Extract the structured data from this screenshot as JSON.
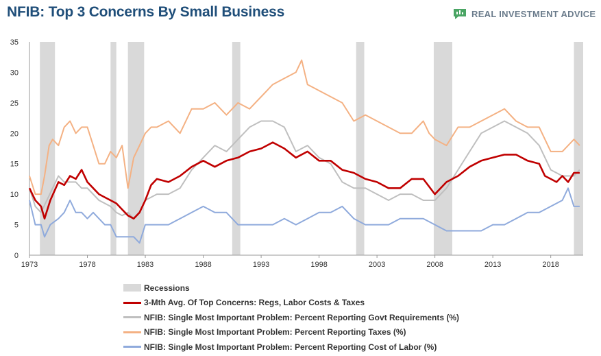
{
  "header": {
    "title": "NFIB: Top 3 Concerns By Small Business",
    "brand": "REAL INVESTMENT ADVICE"
  },
  "legend": {
    "items": [
      {
        "label": "Recessions",
        "kind": "box",
        "color": "#d9d9d9"
      },
      {
        "label": "3-Mth Avg. Of Top Concerns: Regs, Labor Costs & Taxes",
        "kind": "line",
        "color": "#c00000"
      },
      {
        "label": "NFIB: Single Most Important Problem: Percent Reporting Govt Requirements (%)",
        "kind": "line",
        "color": "#bfbfbf"
      },
      {
        "label": "NFIB: Single Most Important Problem: Percent Reporting Taxes (%)",
        "kind": "line",
        "color": "#f4b183"
      },
      {
        "label": "NFIB: Single Most Important Problem: Percent Reporting Cost of Labor (%)",
        "kind": "line",
        "color": "#8faadc"
      }
    ]
  },
  "chart_data": {
    "type": "line",
    "title": "NFIB: Top 3 Concerns By Small Business",
    "xlabel": "",
    "ylabel": "",
    "xlim": [
      1973,
      2020.8
    ],
    "ylim": [
      0,
      35
    ],
    "x_ticks": [
      "1973",
      "1978",
      "1983",
      "1988",
      "1993",
      "1998",
      "2003",
      "2008",
      "2013",
      "2018"
    ],
    "y_ticks": [
      "0",
      "5",
      "10",
      "15",
      "20",
      "25",
      "30",
      "35"
    ],
    "grid": false,
    "legend_position": "bottom",
    "recessions": [
      [
        1973.9,
        1975.2
      ],
      [
        1980.0,
        1980.5
      ],
      [
        1981.5,
        1982.9
      ],
      [
        1990.5,
        1991.2
      ],
      [
        2001.2,
        2001.9
      ],
      [
        2007.9,
        2009.5
      ],
      [
        2020.0,
        2020.8
      ]
    ],
    "series": [
      {
        "name": "3-Mth Avg. Of Top Concerns: Regs, Labor Costs & Taxes",
        "color": "#c00000",
        "points": [
          [
            1973.0,
            11
          ],
          [
            1973.5,
            9
          ],
          [
            1974.0,
            8
          ],
          [
            1974.3,
            6
          ],
          [
            1974.8,
            9
          ],
          [
            1975.5,
            12
          ],
          [
            1976.0,
            11.5
          ],
          [
            1976.5,
            13
          ],
          [
            1977.0,
            12.5
          ],
          [
            1977.5,
            14
          ],
          [
            1978.0,
            12
          ],
          [
            1978.5,
            11
          ],
          [
            1979.0,
            10
          ],
          [
            1979.5,
            9.5
          ],
          [
            1980.0,
            9
          ],
          [
            1980.5,
            8.5
          ],
          [
            1981.0,
            7.5
          ],
          [
            1981.5,
            6.5
          ],
          [
            1982.0,
            6
          ],
          [
            1982.5,
            7
          ],
          [
            1983.0,
            9
          ],
          [
            1983.5,
            11.5
          ],
          [
            1984.0,
            12.5
          ],
          [
            1985.0,
            12
          ],
          [
            1986.0,
            13
          ],
          [
            1987.0,
            14.5
          ],
          [
            1988.0,
            15.5
          ],
          [
            1989.0,
            14.5
          ],
          [
            1990.0,
            15.5
          ],
          [
            1991.0,
            16
          ],
          [
            1992.0,
            17
          ],
          [
            1993.0,
            17.5
          ],
          [
            1994.0,
            18.5
          ],
          [
            1995.0,
            17.5
          ],
          [
            1996.0,
            16
          ],
          [
            1997.0,
            17
          ],
          [
            1998.0,
            15.5
          ],
          [
            1999.0,
            15.5
          ],
          [
            2000.0,
            14
          ],
          [
            2001.0,
            13.5
          ],
          [
            2002.0,
            12.5
          ],
          [
            2003.0,
            12
          ],
          [
            2004.0,
            11
          ],
          [
            2005.0,
            11
          ],
          [
            2006.0,
            12.5
          ],
          [
            2007.0,
            12.5
          ],
          [
            2008.0,
            10
          ],
          [
            2009.0,
            12
          ],
          [
            2010.0,
            13
          ],
          [
            2011.0,
            14.5
          ],
          [
            2012.0,
            15.5
          ],
          [
            2013.0,
            16
          ],
          [
            2014.0,
            16.5
          ],
          [
            2015.0,
            16.5
          ],
          [
            2016.0,
            15.5
          ],
          [
            2017.0,
            15
          ],
          [
            2017.5,
            13
          ],
          [
            2018.0,
            12.5
          ],
          [
            2018.5,
            12
          ],
          [
            2019.0,
            13
          ],
          [
            2019.5,
            12
          ],
          [
            2020.0,
            13.5
          ],
          [
            2020.5,
            13.5
          ]
        ]
      },
      {
        "name": "NFIB: Single Most Important Problem: Percent Reporting Govt Requirements (%)",
        "color": "#bfbfbf",
        "points": [
          [
            1973.0,
            11
          ],
          [
            1973.5,
            8
          ],
          [
            1974.0,
            7
          ],
          [
            1974.5,
            9
          ],
          [
            1975.0,
            11
          ],
          [
            1975.5,
            13
          ],
          [
            1976.0,
            12
          ],
          [
            1977.0,
            12
          ],
          [
            1977.5,
            11
          ],
          [
            1978.0,
            11
          ],
          [
            1979.0,
            9
          ],
          [
            1980.0,
            8
          ],
          [
            1980.5,
            7
          ],
          [
            1981.0,
            6.5
          ],
          [
            1981.5,
            7
          ],
          [
            1982.0,
            6
          ],
          [
            1982.5,
            7
          ],
          [
            1983.0,
            9
          ],
          [
            1984.0,
            10
          ],
          [
            1985.0,
            10
          ],
          [
            1986.0,
            11
          ],
          [
            1987.0,
            14
          ],
          [
            1988.0,
            16
          ],
          [
            1989.0,
            18
          ],
          [
            1990.0,
            17
          ],
          [
            1991.0,
            19
          ],
          [
            1992.0,
            21
          ],
          [
            1993.0,
            22
          ],
          [
            1994.0,
            22
          ],
          [
            1995.0,
            21
          ],
          [
            1996.0,
            17
          ],
          [
            1997.0,
            18
          ],
          [
            1998.0,
            16
          ],
          [
            1999.0,
            15
          ],
          [
            2000.0,
            12
          ],
          [
            2001.0,
            11
          ],
          [
            2002.0,
            11
          ],
          [
            2003.0,
            10
          ],
          [
            2004.0,
            9
          ],
          [
            2005.0,
            10
          ],
          [
            2006.0,
            10
          ],
          [
            2007.0,
            9
          ],
          [
            2008.0,
            9
          ],
          [
            2009.0,
            11
          ],
          [
            2010.0,
            14
          ],
          [
            2011.0,
            17
          ],
          [
            2012.0,
            20
          ],
          [
            2013.0,
            21
          ],
          [
            2014.0,
            22
          ],
          [
            2015.0,
            21
          ],
          [
            2016.0,
            20
          ],
          [
            2017.0,
            18
          ],
          [
            2018.0,
            14
          ],
          [
            2019.0,
            13
          ],
          [
            2020.0,
            13
          ],
          [
            2020.5,
            14
          ]
        ]
      },
      {
        "name": "NFIB: Single Most Important Problem: Percent Reporting Taxes (%)",
        "color": "#f4b183",
        "points": [
          [
            1973.0,
            13
          ],
          [
            1973.5,
            10
          ],
          [
            1974.0,
            10
          ],
          [
            1974.3,
            13
          ],
          [
            1974.7,
            18
          ],
          [
            1975.0,
            19
          ],
          [
            1975.5,
            18
          ],
          [
            1976.0,
            21
          ],
          [
            1976.5,
            22
          ],
          [
            1977.0,
            20
          ],
          [
            1977.5,
            21
          ],
          [
            1978.0,
            21
          ],
          [
            1978.5,
            18
          ],
          [
            1979.0,
            15
          ],
          [
            1979.5,
            15
          ],
          [
            1980.0,
            17
          ],
          [
            1980.5,
            16
          ],
          [
            1981.0,
            18
          ],
          [
            1981.5,
            11
          ],
          [
            1982.0,
            16
          ],
          [
            1982.5,
            18
          ],
          [
            1983.0,
            20
          ],
          [
            1983.5,
            21
          ],
          [
            1984.0,
            21
          ],
          [
            1985.0,
            22
          ],
          [
            1986.0,
            20
          ],
          [
            1987.0,
            24
          ],
          [
            1988.0,
            24
          ],
          [
            1989.0,
            25
          ],
          [
            1990.0,
            23
          ],
          [
            1991.0,
            25
          ],
          [
            1992.0,
            24
          ],
          [
            1993.0,
            26
          ],
          [
            1994.0,
            28
          ],
          [
            1995.0,
            29
          ],
          [
            1996.0,
            30
          ],
          [
            1996.5,
            32
          ],
          [
            1997.0,
            28
          ],
          [
            1998.0,
            27
          ],
          [
            1999.0,
            26
          ],
          [
            2000.0,
            25
          ],
          [
            2001.0,
            22
          ],
          [
            2002.0,
            23
          ],
          [
            2003.0,
            22
          ],
          [
            2004.0,
            21
          ],
          [
            2005.0,
            20
          ],
          [
            2006.0,
            20
          ],
          [
            2007.0,
            22
          ],
          [
            2007.5,
            20
          ],
          [
            2008.0,
            19
          ],
          [
            2009.0,
            18
          ],
          [
            2010.0,
            21
          ],
          [
            2011.0,
            21
          ],
          [
            2012.0,
            22
          ],
          [
            2013.0,
            23
          ],
          [
            2014.0,
            24
          ],
          [
            2015.0,
            22
          ],
          [
            2016.0,
            21
          ],
          [
            2017.0,
            21
          ],
          [
            2018.0,
            17
          ],
          [
            2019.0,
            17
          ],
          [
            2020.0,
            19
          ],
          [
            2020.5,
            18
          ]
        ]
      },
      {
        "name": "NFIB: Single Most Important Problem: Percent Reporting Cost of Labor (%)",
        "color": "#8faadc",
        "points": [
          [
            1973.0,
            9
          ],
          [
            1973.5,
            5
          ],
          [
            1974.0,
            5
          ],
          [
            1974.3,
            3
          ],
          [
            1974.8,
            5
          ],
          [
            1975.5,
            6
          ],
          [
            1976.0,
            7
          ],
          [
            1976.5,
            9
          ],
          [
            1977.0,
            7
          ],
          [
            1977.5,
            7
          ],
          [
            1978.0,
            6
          ],
          [
            1978.5,
            7
          ],
          [
            1979.0,
            6
          ],
          [
            1979.5,
            5
          ],
          [
            1980.0,
            5
          ],
          [
            1980.5,
            3
          ],
          [
            1981.0,
            3
          ],
          [
            1982.0,
            3
          ],
          [
            1982.5,
            2
          ],
          [
            1983.0,
            5
          ],
          [
            1984.0,
            5
          ],
          [
            1985.0,
            5
          ],
          [
            1986.0,
            6
          ],
          [
            1987.0,
            7
          ],
          [
            1988.0,
            8
          ],
          [
            1989.0,
            7
          ],
          [
            1990.0,
            7
          ],
          [
            1991.0,
            5
          ],
          [
            1992.0,
            5
          ],
          [
            1993.0,
            5
          ],
          [
            1994.0,
            5
          ],
          [
            1995.0,
            6
          ],
          [
            1996.0,
            5
          ],
          [
            1997.0,
            6
          ],
          [
            1998.0,
            7
          ],
          [
            1999.0,
            7
          ],
          [
            2000.0,
            8
          ],
          [
            2001.0,
            6
          ],
          [
            2002.0,
            5
          ],
          [
            2003.0,
            5
          ],
          [
            2004.0,
            5
          ],
          [
            2005.0,
            6
          ],
          [
            2006.0,
            6
          ],
          [
            2007.0,
            6
          ],
          [
            2008.0,
            5
          ],
          [
            2009.0,
            4
          ],
          [
            2010.0,
            4
          ],
          [
            2011.0,
            4
          ],
          [
            2012.0,
            4
          ],
          [
            2013.0,
            5
          ],
          [
            2014.0,
            5
          ],
          [
            2015.0,
            6
          ],
          [
            2016.0,
            7
          ],
          [
            2017.0,
            7
          ],
          [
            2018.0,
            8
          ],
          [
            2019.0,
            9
          ],
          [
            2019.5,
            11
          ],
          [
            2020.0,
            8
          ],
          [
            2020.5,
            8
          ]
        ]
      }
    ]
  }
}
